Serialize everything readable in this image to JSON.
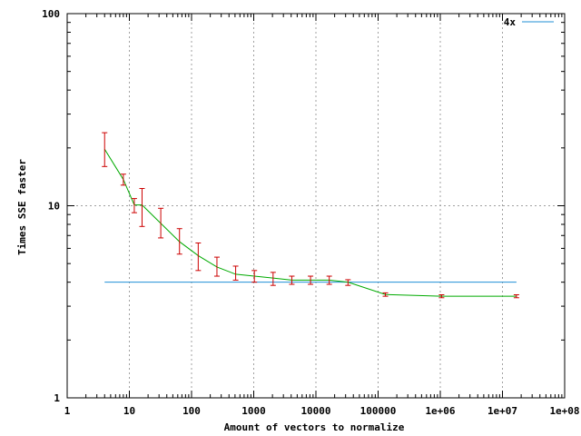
{
  "chart_data": {
    "type": "line",
    "xlabel": "Amount of vectors to normalize",
    "ylabel": "Times SSE faster",
    "x_scale": "log",
    "y_scale": "log",
    "xlim": [
      1,
      100000000
    ],
    "ylim": [
      1,
      100
    ],
    "grid": true,
    "legend_position": "top-right",
    "x_tick_labels": [
      "1",
      "10",
      "100",
      "1000",
      "10000",
      "100000",
      "1e+06",
      "1e+07",
      "1e+08"
    ],
    "y_tick_labels": [
      "1",
      "10",
      "100"
    ],
    "series": [
      {
        "name": "4x",
        "color": "#1f8fd6",
        "x": [
          4,
          16777216
        ],
        "y": [
          4,
          4
        ]
      },
      {
        "color": "#00aa00",
        "error_color": "#cc0000",
        "x": [
          4,
          8,
          12,
          16,
          32,
          64,
          128,
          256,
          512,
          1024,
          2048,
          4096,
          8192,
          16384,
          32768,
          131072,
          1048576,
          16777216
        ],
        "y": [
          19.7,
          13.7,
          10.1,
          10.1,
          8.1,
          6.5,
          5.5,
          4.8,
          4.4,
          4.3,
          4.2,
          4.1,
          4.1,
          4.1,
          4.0,
          3.45,
          3.38,
          3.38
        ],
        "yerr_low": [
          16,
          12.8,
          9.2,
          7.8,
          6.8,
          5.6,
          4.6,
          4.3,
          4.1,
          4.0,
          3.85,
          3.9,
          3.9,
          3.9,
          3.85,
          3.38,
          3.32,
          3.32
        ],
        "yerr_high": [
          24,
          14.6,
          10.9,
          12.3,
          9.7,
          7.6,
          6.4,
          5.4,
          4.85,
          4.6,
          4.5,
          4.3,
          4.3,
          4.3,
          4.12,
          3.52,
          3.44,
          3.44
        ]
      }
    ]
  }
}
